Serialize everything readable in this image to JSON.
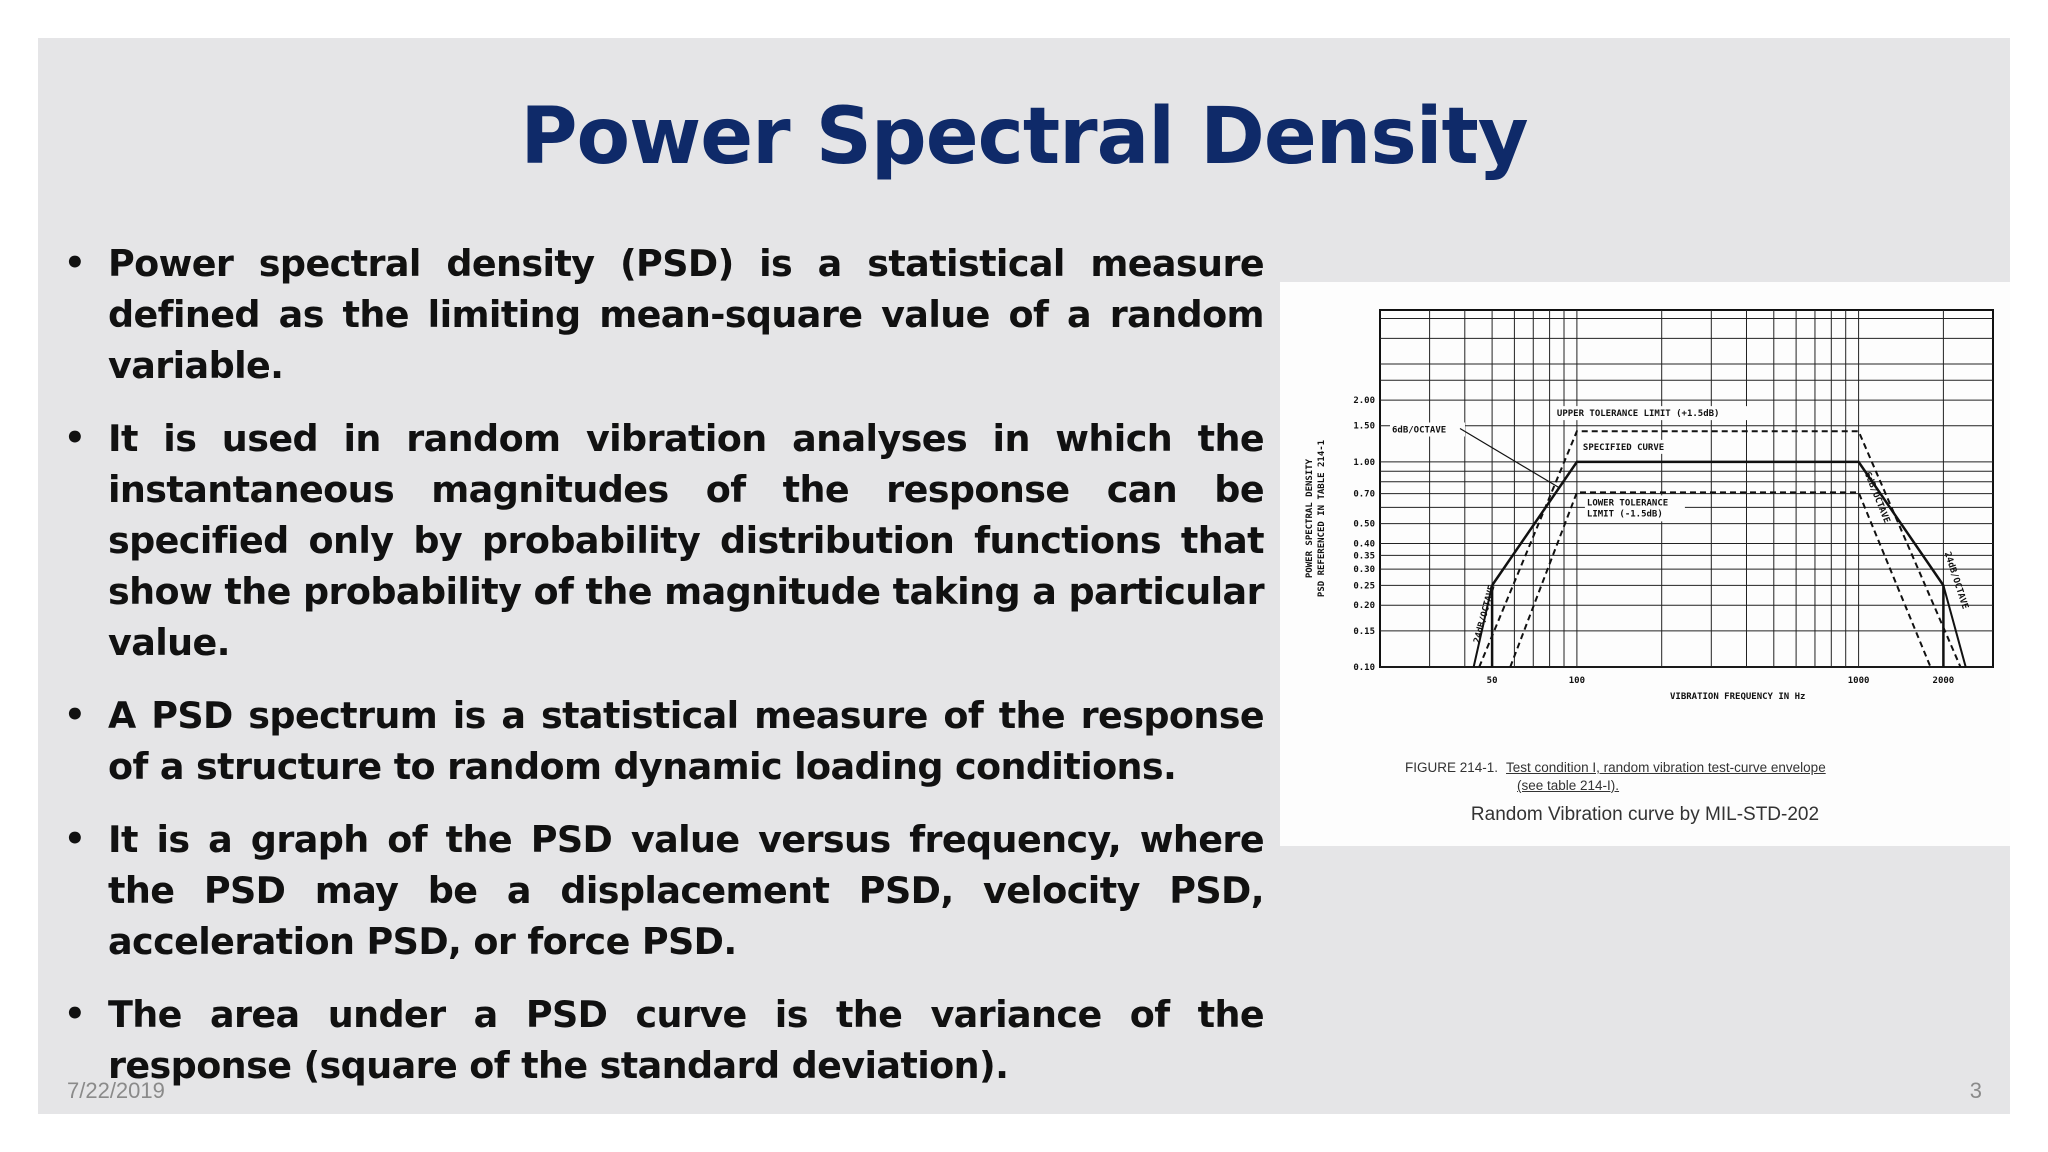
{
  "slide": {
    "title": "Power Spectral Density",
    "bullets": [
      "Power spectral density (PSD) is a statistical measure defined as the limiting mean-square value of a random variable.",
      "It is used in random vibration analyses in which the instantaneous magnitudes of the response can be specified only by probability distribution functions that show the probability of the magnitude taking a particular value.",
      "A PSD spectrum is a statistical measure of the response of a structure to random dynamic loading conditions.",
      "It is a graph of the PSD value versus frequency, where the PSD may be a displacement PSD, velocity PSD, acceleration PSD, or force PSD.",
      "The area under a PSD curve is the variance of the response (square of the standard deviation)."
    ],
    "bullet_glyph": "•",
    "date": "7/22/2019",
    "page_number": "3"
  },
  "figure": {
    "caption_prefix": "FIGURE 214-1.",
    "caption_line1": "Test condition I, random vibration test-curve envelope",
    "caption_line2": "(see table 214-I).",
    "subtitle": "Random Vibration curve by MIL-STD-202"
  },
  "chart_data": {
    "type": "line",
    "xlabel": "VIBRATION FREQUENCY IN Hz",
    "ylabel_line1": "POWER SPECTRAL DENSITY",
    "ylabel_line2": "PSD REFERENCED IN TABLE 214-1",
    "x_scale": "log",
    "y_scale": "log",
    "x_tick_labels": [
      "50",
      "100",
      "1000",
      "2000"
    ],
    "y_tick_labels": [
      "2.00",
      "1.50",
      "1.00",
      "0.70",
      "0.50",
      "0.40",
      "0.35",
      "0.30",
      "0.25",
      "0.20",
      "0.15",
      "0.10"
    ],
    "annotations": [
      "UPPER TOLERANCE LIMIT (+1.5dB)",
      "SPECIFIED CURVE",
      "LOWER TOLERANCE LIMIT (-1.5dB)",
      "6dB/OCTAVE",
      "24dB/OCTAVE",
      "6dB/OCTAVE",
      "24dB/OCTAVE"
    ],
    "series": [
      {
        "x": [
          50,
          100,
          1000,
          2000
        ],
        "y": [
          0.25,
          1.0,
          1.0,
          0.25
        ]
      },
      {
        "x": [
          100,
          1000
        ],
        "y": [
          1.41,
          1.41
        ]
      },
      {
        "x": [
          100,
          1000
        ],
        "y": [
          0.71,
          0.71
        ]
      }
    ],
    "grid": true
  }
}
